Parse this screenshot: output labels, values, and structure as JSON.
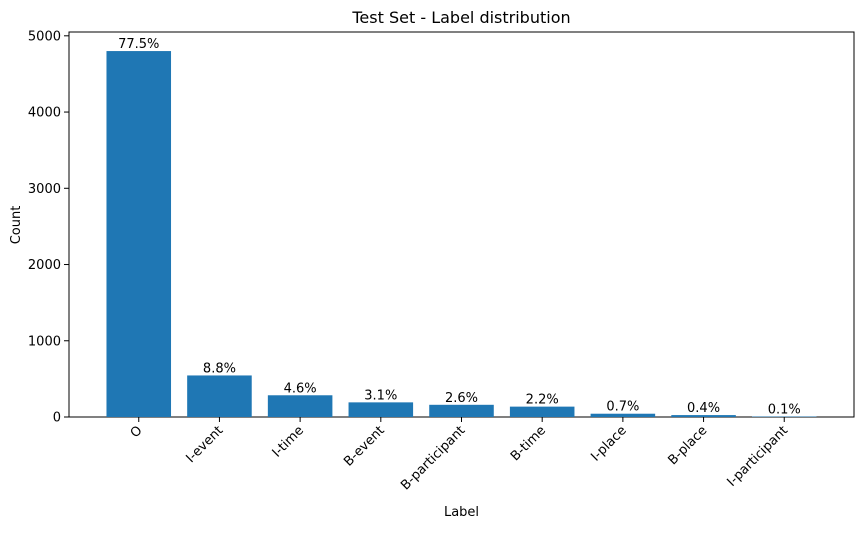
{
  "chart_data": {
    "type": "bar",
    "title": "Test Set - Label distribution",
    "xlabel": "Label",
    "ylabel": "Count",
    "ylim": [
      0,
      5050
    ],
    "yticks": [
      0,
      1000,
      2000,
      3000,
      4000,
      5000
    ],
    "grid": false,
    "bar_color": "#1f77b4",
    "categories": [
      "O",
      "I-event",
      "I-time",
      "B-event",
      "B-participant",
      "B-time",
      "I-place",
      "B-place",
      "I-participant"
    ],
    "values": [
      4800,
      545,
      285,
      192,
      160,
      136,
      43,
      25,
      6
    ],
    "data_labels": [
      "77.5%",
      "8.8%",
      "4.6%",
      "3.1%",
      "2.6%",
      "2.2%",
      "0.7%",
      "0.4%",
      "0.1%"
    ]
  }
}
